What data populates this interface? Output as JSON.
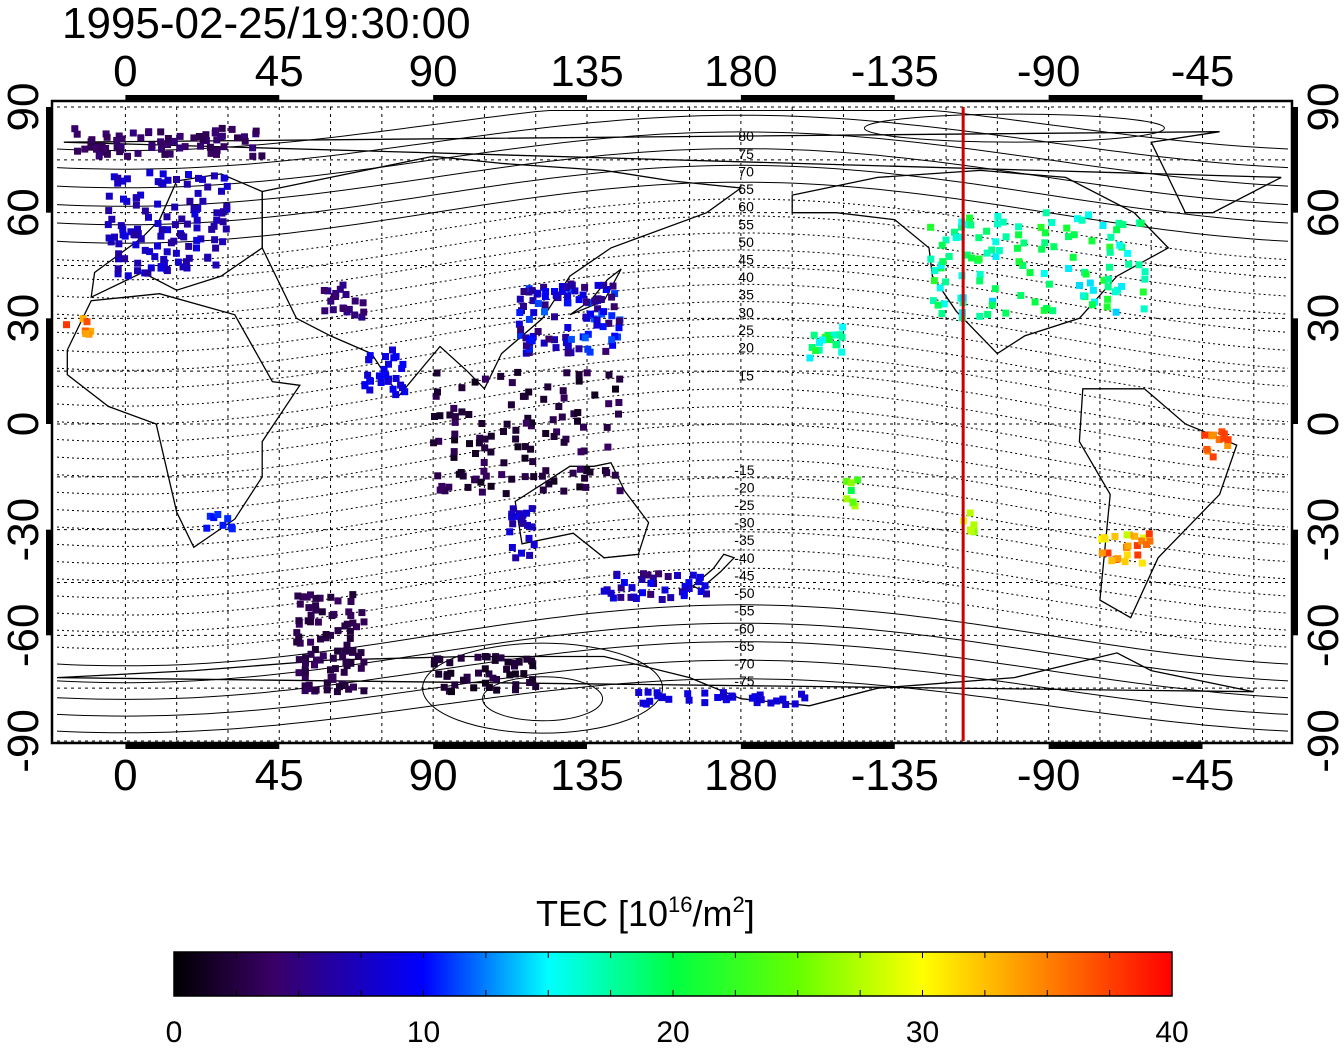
{
  "title": "1995-02-25/19:30:00",
  "map": {
    "projection": "equirectangular",
    "lon_range_shifted": [
      -20,
      340
    ],
    "lat_range": [
      -90,
      90
    ],
    "lon_tick_labels": [
      "0",
      "45",
      "90",
      "135",
      "180",
      "-135",
      "-90",
      "-45"
    ],
    "lat_tick_labels": [
      "90",
      "60",
      "30",
      "0",
      "-30",
      "-60",
      "-90"
    ],
    "contour_labels_north": [
      "80",
      "75",
      "70",
      "65",
      "60",
      "55",
      "50",
      "45",
      "40",
      "35",
      "30",
      "25",
      "20",
      "15"
    ],
    "contour_labels_south": [
      "-15",
      "-20",
      "-25",
      "-30",
      "-35",
      "-40",
      "-45",
      "-50",
      "-55",
      "-60",
      "-65",
      "-70",
      "-75"
    ],
    "terminator_longitude": -115,
    "terminator_color": "#cc0000",
    "grid": true
  },
  "colorbar": {
    "label_main": "TEC  [10",
    "label_exp": "16",
    "label_unit": "/m",
    "label_exp2": "2",
    "label_close": "]",
    "min": 0,
    "max": 40,
    "tick_labels": [
      "0",
      "10",
      "20",
      "30",
      "40"
    ],
    "colormap": "black-purple-blue-cyan-green-yellow-red"
  },
  "tec_clusters": [
    {
      "region": "europe",
      "lon": [
        -5,
        30
      ],
      "lat": [
        42,
        72
      ],
      "tec": [
        6,
        9
      ]
    },
    {
      "region": "arctic-europe",
      "lon": [
        -15,
        40
      ],
      "lat": [
        76,
        84
      ],
      "tec": [
        3,
        5
      ]
    },
    {
      "region": "iberia-africa-west",
      "lon": [
        -18,
        -10
      ],
      "lat": [
        25,
        30
      ],
      "tec": [
        33,
        38
      ]
    },
    {
      "region": "india",
      "lon": [
        70,
        82
      ],
      "lat": [
        8,
        22
      ],
      "tec": [
        8,
        10
      ]
    },
    {
      "region": "middle-east",
      "lon": [
        58,
        70
      ],
      "lat": [
        30,
        40
      ],
      "tec": [
        4,
        6
      ]
    },
    {
      "region": "east-asia",
      "lon": [
        115,
        145
      ],
      "lat": [
        20,
        40
      ],
      "tec": [
        4,
        12
      ]
    },
    {
      "region": "indonesia-pacific",
      "lon": [
        90,
        145
      ],
      "lat": [
        -20,
        15
      ],
      "tec": [
        1,
        4
      ]
    },
    {
      "region": "australia",
      "lon": [
        112,
        120
      ],
      "lat": [
        -38,
        -22
      ],
      "tec": [
        6,
        9
      ]
    },
    {
      "region": "australia-south",
      "lon": [
        140,
        170
      ],
      "lat": [
        -50,
        -42
      ],
      "tec": [
        4,
        10
      ]
    },
    {
      "region": "south-africa",
      "lon": [
        22,
        32
      ],
      "lat": [
        -30,
        -25
      ],
      "tec": [
        10,
        11
      ]
    },
    {
      "region": "southern-ocean",
      "lon": [
        50,
        70
      ],
      "lat": [
        -76,
        -48
      ],
      "tec": [
        2,
        4
      ]
    },
    {
      "region": "antarctica",
      "lon": [
        90,
        120
      ],
      "lat": [
        -76,
        -66
      ],
      "tec": [
        1,
        3
      ]
    },
    {
      "region": "antarctica-ross",
      "lon": [
        150,
        200
      ],
      "lat": [
        -80,
        -76
      ],
      "tec": [
        8,
        9
      ]
    },
    {
      "region": "hawaii",
      "lon": [
        -160,
        -150
      ],
      "lat": [
        18,
        28
      ],
      "tec": [
        14,
        22
      ]
    },
    {
      "region": "north-america",
      "lon": [
        -125,
        -60
      ],
      "lat": [
        30,
        60
      ],
      "tec": [
        14,
        22
      ]
    },
    {
      "region": "south-pacific",
      "lon": [
        -150,
        -145
      ],
      "lat": [
        -25,
        -15
      ],
      "tec": [
        19,
        30
      ]
    },
    {
      "region": "south-america-west",
      "lon": [
        -115,
        -110
      ],
      "lat": [
        -32,
        -25
      ],
      "tec": [
        22,
        30
      ]
    },
    {
      "region": "brazil",
      "lon": [
        -45,
        -35
      ],
      "lat": [
        -10,
        -2
      ],
      "tec": [
        33,
        38
      ]
    },
    {
      "region": "argentina",
      "lon": [
        -75,
        -60
      ],
      "lat": [
        -40,
        -30
      ],
      "tec": [
        28,
        38
      ]
    }
  ]
}
